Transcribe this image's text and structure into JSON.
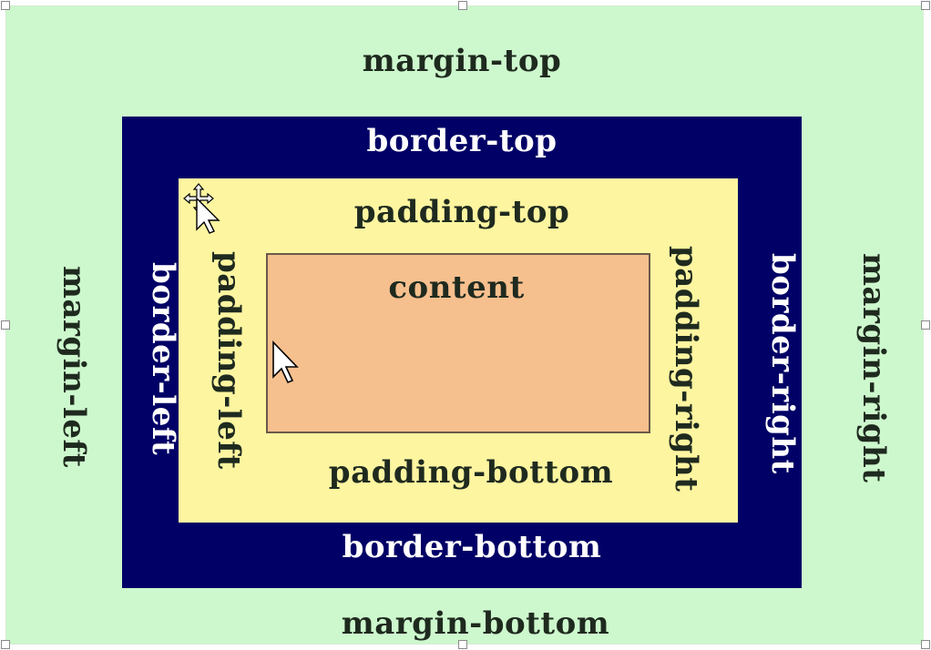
{
  "labels": {
    "margin_top": "margin-top",
    "margin_bottom": "margin-bottom",
    "margin_left": "margin-left",
    "margin_right": "margin-right",
    "border_top": "border-top",
    "border_bottom": "border-bottom",
    "border_left": "border-left",
    "border_right": "border-right",
    "padding_top": "padding-top",
    "padding_bottom": "padding-bottom",
    "padding_left": "padding-left",
    "padding_right": "padding-right",
    "content": "content"
  },
  "colors": {
    "margin": "#cdf8cd",
    "border": "#000066",
    "padding": "#fdf5a0",
    "content": "#f6bf8e"
  },
  "icons": [
    "move-cursor-icon",
    "arrow-cursor-icon",
    "resize-handle"
  ]
}
